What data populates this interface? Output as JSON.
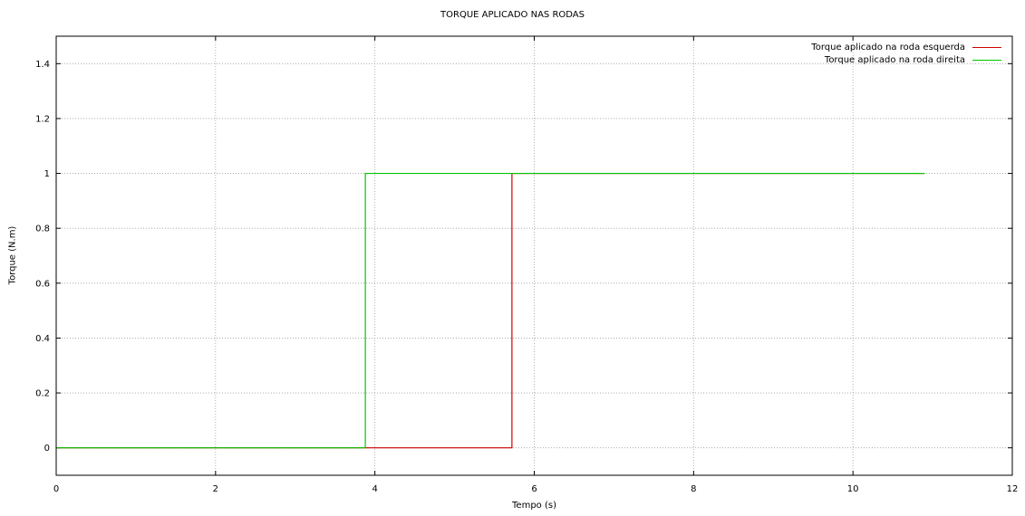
{
  "chart_data": {
    "type": "line",
    "title": "TORQUE APLICADO NAS RODAS",
    "xlabel": "Tempo (s)",
    "ylabel": "Torque (N.m)",
    "xlim": [
      0,
      12
    ],
    "ylim": [
      -0.1,
      1.5
    ],
    "xticks": [
      0,
      2,
      4,
      6,
      8,
      10,
      12
    ],
    "yticks": [
      0,
      0.2,
      0.4,
      0.6,
      0.8,
      1,
      1.2,
      1.4
    ],
    "grid": true,
    "legend_position": "top-right",
    "series": [
      {
        "name": "Torque aplicado na roda esquerda",
        "color": "#d00000",
        "x": [
          0,
          5.72,
          5.72,
          10.9
        ],
        "y": [
          0,
          0,
          1,
          1
        ]
      },
      {
        "name": "Torque aplicado na roda direita",
        "color": "#00c800",
        "x": [
          0,
          3.88,
          3.88,
          10.9
        ],
        "y": [
          0,
          0,
          1,
          1
        ]
      }
    ]
  }
}
